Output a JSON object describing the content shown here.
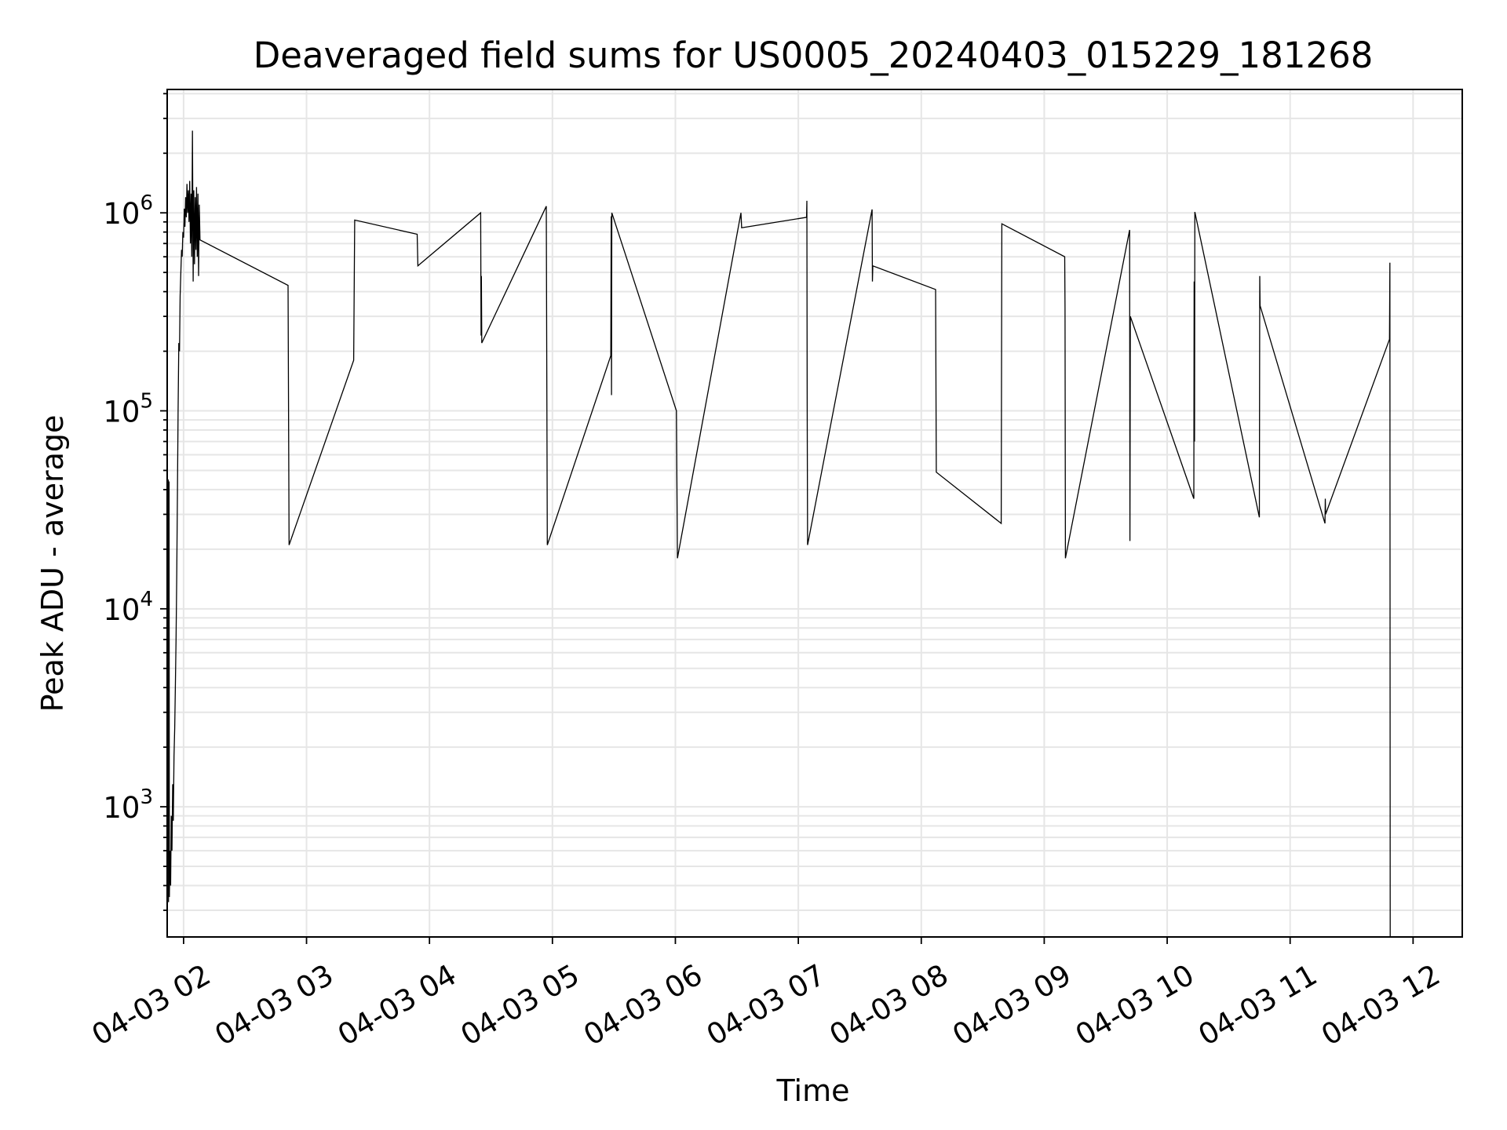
{
  "chart_data": {
    "type": "line",
    "title": "Deaveraged field sums for US0005_20240403_015229_181268",
    "xlabel": "Time",
    "ylabel": "Peak ADU - average",
    "y_scale": "log",
    "ylim": [
      220,
      4200000
    ],
    "xlim": [
      "2024-04-03 01:52",
      "2024-04-03 12:24"
    ],
    "grid": true,
    "x_ticks": [
      {
        "t": "2024-04-03 02:00",
        "label": "04-03 02"
      },
      {
        "t": "2024-04-03 03:00",
        "label": "04-03 03"
      },
      {
        "t": "2024-04-03 04:00",
        "label": "04-03 04"
      },
      {
        "t": "2024-04-03 05:00",
        "label": "04-03 05"
      },
      {
        "t": "2024-04-03 06:00",
        "label": "04-03 06"
      },
      {
        "t": "2024-04-03 07:00",
        "label": "04-03 07"
      },
      {
        "t": "2024-04-03 08:00",
        "label": "04-03 08"
      },
      {
        "t": "2024-04-03 09:00",
        "label": "04-03 09"
      },
      {
        "t": "2024-04-03 10:00",
        "label": "04-03 10"
      },
      {
        "t": "2024-04-03 11:00",
        "label": "04-03 11"
      },
      {
        "t": "2024-04-03 12:00",
        "label": "04-03 12"
      }
    ],
    "y_ticks": [
      {
        "value": 1000,
        "label_base": "10",
        "label_exp": "3"
      },
      {
        "value": 10000,
        "label_base": "10",
        "label_exp": "4"
      },
      {
        "value": 100000,
        "label_base": "10",
        "label_exp": "5"
      },
      {
        "value": 1000000,
        "label_base": "10",
        "label_exp": "6"
      }
    ],
    "series": [
      {
        "color": "#000000",
        "points": [
          [
            "2024-04-03 01:52:30",
            45000
          ],
          [
            "2024-04-03 01:52:40",
            330
          ],
          [
            "2024-04-03 01:52:55",
            44000
          ],
          [
            "2024-04-03 01:53:05",
            350
          ],
          [
            "2024-04-03 01:53:20",
            600
          ],
          [
            "2024-04-03 01:53:40",
            400
          ],
          [
            "2024-04-03 01:54:00",
            900
          ],
          [
            "2024-04-03 01:54:20",
            600
          ],
          [
            "2024-04-03 01:54:40",
            1300
          ],
          [
            "2024-04-03 01:55:00",
            850
          ],
          [
            "2024-04-03 01:55:20",
            1800
          ],
          [
            "2024-04-03 01:55:40",
            2500
          ],
          [
            "2024-04-03 01:56:00",
            4000
          ],
          [
            "2024-04-03 01:56:20",
            7000
          ],
          [
            "2024-04-03 01:56:40",
            15000
          ],
          [
            "2024-04-03 01:57:00",
            40000
          ],
          [
            "2024-04-03 01:57:20",
            100000
          ],
          [
            "2024-04-03 01:57:40",
            220000
          ],
          [
            "2024-04-03 01:58:00",
            200000
          ],
          [
            "2024-04-03 01:58:20",
            380000
          ],
          [
            "2024-04-03 01:58:40",
            500000
          ],
          [
            "2024-04-03 01:59:00",
            650000
          ],
          [
            "2024-04-03 01:59:20",
            600000
          ],
          [
            "2024-04-03 01:59:40",
            800000
          ],
          [
            "2024-04-03 02:00:00",
            750000
          ],
          [
            "2024-04-03 02:00:20",
            1050000
          ],
          [
            "2024-04-03 02:00:40",
            850000
          ],
          [
            "2024-04-03 02:01:00",
            1200000
          ],
          [
            "2024-04-03 02:01:20",
            950000
          ],
          [
            "2024-04-03 02:01:40",
            1400000
          ],
          [
            "2024-04-03 02:02:00",
            1000000
          ],
          [
            "2024-04-03 02:02:20",
            1300000
          ],
          [
            "2024-04-03 02:02:40",
            900000
          ],
          [
            "2024-04-03 02:03:00",
            1450000
          ],
          [
            "2024-04-03 02:03:20",
            700000
          ],
          [
            "2024-04-03 02:03:40",
            1250000
          ],
          [
            "2024-04-03 02:04:00",
            600000
          ],
          [
            "2024-04-03 02:04:20",
            2600000
          ],
          [
            "2024-04-03 02:04:40",
            450000
          ],
          [
            "2024-04-03 02:05:00",
            1300000
          ],
          [
            "2024-04-03 02:05:20",
            550000
          ],
          [
            "2024-04-03 02:05:40",
            1200000
          ],
          [
            "2024-04-03 02:06:00",
            650000
          ],
          [
            "2024-04-03 02:06:20",
            1350000
          ],
          [
            "2024-04-03 02:06:40",
            600000
          ],
          [
            "2024-04-03 02:07:00",
            1250000
          ],
          [
            "2024-04-03 02:07:20",
            480000
          ],
          [
            "2024-04-03 02:07:40",
            1100000
          ],
          [
            "2024-04-03 02:08:00",
            730000
          ],
          [
            "2024-04-03 02:51:00",
            430000
          ],
          [
            "2024-04-03 02:51:30",
            21000
          ],
          [
            "2024-04-03 03:23:00",
            180000
          ],
          [
            "2024-04-03 03:23:30",
            920000
          ],
          [
            "2024-04-03 03:54:00",
            780000
          ],
          [
            "2024-04-03 03:54:20",
            540000
          ],
          [
            "2024-04-03 04:25:00",
            1000000
          ],
          [
            "2024-04-03 04:25:10",
            240000
          ],
          [
            "2024-04-03 04:25:20",
            480000
          ],
          [
            "2024-04-03 04:25:30",
            220000
          ],
          [
            "2024-04-03 04:57:00",
            1080000
          ],
          [
            "2024-04-03 04:57:30",
            21000
          ],
          [
            "2024-04-03 05:28:30",
            190000
          ],
          [
            "2024-04-03 05:28:40",
            960000
          ],
          [
            "2024-04-03 05:28:50",
            120000
          ],
          [
            "2024-04-03 05:29:00",
            1000000
          ],
          [
            "2024-04-03 06:00:30",
            100000
          ],
          [
            "2024-04-03 06:01:00",
            18000
          ],
          [
            "2024-04-03 06:32:00",
            1000000
          ],
          [
            "2024-04-03 06:32:20",
            840000
          ],
          [
            "2024-04-03 07:04:00",
            950000
          ],
          [
            "2024-04-03 07:04:10",
            1150000
          ],
          [
            "2024-04-03 07:04:20",
            105000
          ],
          [
            "2024-04-03 07:04:30",
            21000
          ],
          [
            "2024-04-03 07:36:00",
            1040000
          ],
          [
            "2024-04-03 07:36:10",
            450000
          ],
          [
            "2024-04-03 07:36:20",
            540000
          ],
          [
            "2024-04-03 08:07:00",
            410000
          ],
          [
            "2024-04-03 08:07:20",
            49000
          ],
          [
            "2024-04-03 08:39:00",
            27000
          ],
          [
            "2024-04-03 08:39:20",
            880000
          ],
          [
            "2024-04-03 09:10:00",
            600000
          ],
          [
            "2024-04-03 09:10:10",
            330000
          ],
          [
            "2024-04-03 09:10:20",
            18000
          ],
          [
            "2024-04-03 09:41:40",
            820000
          ],
          [
            "2024-04-03 09:41:50",
            22000
          ],
          [
            "2024-04-03 09:42:00",
            300000
          ],
          [
            "2024-04-03 10:13:00",
            36000
          ],
          [
            "2024-04-03 10:13:10",
            450000
          ],
          [
            "2024-04-03 10:13:20",
            70000
          ],
          [
            "2024-04-03 10:13:30",
            1010000
          ],
          [
            "2024-04-03 10:45:00",
            29000
          ],
          [
            "2024-04-03 10:45:10",
            480000
          ],
          [
            "2024-04-03 10:45:20",
            340000
          ],
          [
            "2024-04-03 11:17:00",
            27000
          ],
          [
            "2024-04-03 11:17:10",
            36000
          ],
          [
            "2024-04-03 11:17:20",
            30000
          ],
          [
            "2024-04-03 11:48:30",
            230000
          ],
          [
            "2024-04-03 11:48:40",
            560000
          ],
          [
            "2024-04-03 11:48:50",
            220
          ]
        ]
      }
    ]
  }
}
